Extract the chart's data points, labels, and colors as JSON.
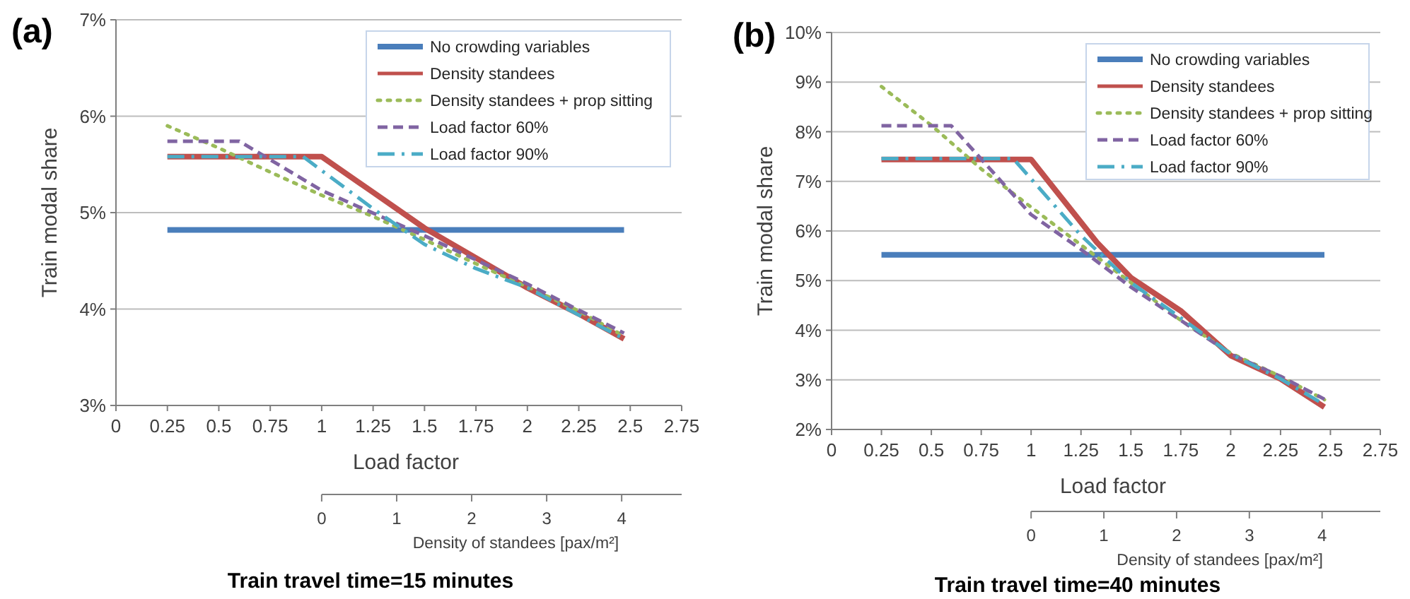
{
  "chart_data": [
    {
      "type": "line",
      "title": "Train travel time=15 minutes",
      "annotations": [
        "(a)"
      ],
      "xlabel": "Load factor",
      "ylabel": "Train modal share",
      "x2label": "Density of standees [pax/m²]",
      "xlim": [
        0,
        2.75
      ],
      "xticks": [
        0,
        0.25,
        0.5,
        0.75,
        1,
        1.25,
        1.5,
        1.75,
        2,
        2.25,
        2.5,
        2.75
      ],
      "ylim": [
        3,
        7
      ],
      "yticks": [
        {
          "value": 3,
          "label": "3%"
        },
        {
          "value": 4,
          "label": "4%"
        },
        {
          "value": 5,
          "label": "5%"
        },
        {
          "value": 6,
          "label": "6%"
        },
        {
          "value": 7,
          "label": "7%"
        }
      ],
      "x2lim": [
        0,
        4.8
      ],
      "x2ticks": [
        0,
        1,
        2,
        3,
        4
      ],
      "grid": "y",
      "legend": "top right",
      "series": [
        {
          "name": "No crowding variables",
          "color": "#4a7ebb",
          "line_style": "solid",
          "x": [
            0.25,
            2.47
          ],
          "values": [
            4.82,
            4.82
          ]
        },
        {
          "name": "Density standees",
          "color": "#c0504d",
          "line_style": "solid",
          "x": [
            0.25,
            1,
            1.25,
            1.5,
            1.75,
            2,
            2.25,
            2.47
          ],
          "values": [
            5.58,
            5.58,
            5.21,
            4.84,
            4.53,
            4.22,
            3.95,
            3.69
          ]
        },
        {
          "name": "Density standees + prop sitting",
          "color": "#9bbb59",
          "line_style": "dotted",
          "x": [
            0.25,
            0.5,
            0.75,
            1,
            1.25,
            1.5,
            1.75,
            2,
            2.25,
            2.47
          ],
          "values": [
            5.9,
            5.67,
            5.42,
            5.18,
            4.96,
            4.72,
            4.47,
            4.23,
            3.98,
            3.72
          ]
        },
        {
          "name": "Load factor 60%",
          "color": "#8064a2",
          "line_style": "dashed",
          "x": [
            0.25,
            0.6,
            1,
            1.5,
            2,
            2.47
          ],
          "values": [
            5.74,
            5.74,
            5.23,
            4.76,
            4.26,
            3.75
          ]
        },
        {
          "name": "Load factor 90%",
          "color": "#4bacc6",
          "line_style": "dashdot",
          "x": [
            0.25,
            0.91,
            1.25,
            1.5,
            1.75,
            2,
            2.47
          ],
          "values": [
            5.58,
            5.58,
            5.04,
            4.67,
            4.42,
            4.22,
            3.69
          ]
        }
      ]
    },
    {
      "type": "line",
      "title": "Train travel time=40 minutes",
      "annotations": [
        "(b)"
      ],
      "xlabel": "Load factor",
      "ylabel": "Train modal share",
      "x2label": "Density of standees [pax/m²]",
      "xlim": [
        0,
        2.75
      ],
      "xticks": [
        0,
        0.25,
        0.5,
        0.75,
        1,
        1.25,
        1.5,
        1.75,
        2,
        2.25,
        2.5,
        2.75
      ],
      "ylim": [
        2,
        10
      ],
      "yticks": [
        {
          "value": 2,
          "label": "2%"
        },
        {
          "value": 3,
          "label": "3%"
        },
        {
          "value": 4,
          "label": "4%"
        },
        {
          "value": 5,
          "label": "5%"
        },
        {
          "value": 6,
          "label": "6%"
        },
        {
          "value": 7,
          "label": "7%"
        },
        {
          "value": 8,
          "label": "8%"
        },
        {
          "value": 9,
          "label": "9%"
        },
        {
          "value": 10,
          "label": "10%"
        }
      ],
      "x2lim": [
        0,
        4.8
      ],
      "x2ticks": [
        0,
        1,
        2,
        3,
        4
      ],
      "grid": "y",
      "legend": "top right",
      "series": [
        {
          "name": "No crowding variables",
          "color": "#4a7ebb",
          "line_style": "solid",
          "x": [
            0.25,
            2.47
          ],
          "values": [
            5.52,
            5.52
          ]
        },
        {
          "name": "Density standees",
          "color": "#c0504d",
          "line_style": "solid",
          "x": [
            0.25,
            1,
            1.33,
            1.5,
            1.75,
            2,
            2.25,
            2.47
          ],
          "values": [
            7.44,
            7.44,
            5.77,
            5.06,
            4.39,
            3.49,
            3.02,
            2.45
          ]
        },
        {
          "name": "Density standees + prop sitting",
          "color": "#9bbb59",
          "line_style": "dotted",
          "x": [
            0.25,
            0.5,
            0.75,
            1,
            1.25,
            1.5,
            1.75,
            2,
            2.25,
            2.47
          ],
          "values": [
            8.91,
            8.13,
            7.25,
            6.48,
            5.72,
            4.96,
            4.2,
            3.54,
            3.07,
            2.6
          ]
        },
        {
          "name": "Load factor 60%",
          "color": "#8064a2",
          "line_style": "dashed",
          "x": [
            0.25,
            0.6,
            1,
            1.25,
            1.5,
            1.75,
            2,
            2.25,
            2.47
          ],
          "values": [
            8.12,
            8.12,
            6.33,
            5.63,
            4.87,
            4.2,
            3.52,
            3.07,
            2.61
          ]
        },
        {
          "name": "Load factor 90%",
          "color": "#4bacc6",
          "line_style": "dashdot",
          "x": [
            0.25,
            0.91,
            1.25,
            1.5,
            1.75,
            2,
            2.25,
            2.47
          ],
          "values": [
            7.46,
            7.46,
            5.91,
            4.96,
            4.25,
            3.52,
            3.02,
            2.5
          ]
        }
      ]
    }
  ]
}
